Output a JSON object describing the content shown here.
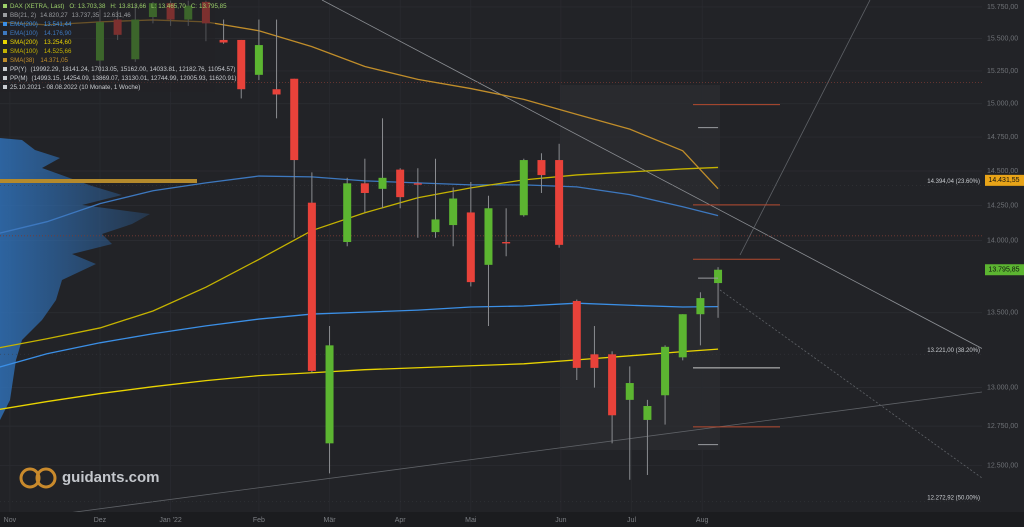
{
  "chart_data": {
    "type": "candlestick",
    "title": "DAX (XETRA, Last)",
    "ohlc_keys": [
      "O:",
      "H:",
      "L:",
      "C:"
    ],
    "ohlc_labels": [
      "13.703,38",
      "13.813,66",
      "13.465,70",
      "13.795,85"
    ],
    "date_range": "25.10.2021 - 08.08.2022  (10 Monate, 1 Woche)",
    "watermark": "guidants.com",
    "log_scale": true,
    "grid": true,
    "up_color": "#5cb531",
    "down_color": "#e8423a",
    "ylim": [
      12210,
      15805
    ],
    "yticks": [
      {
        "value": 12500,
        "label": "12.500,00"
      },
      {
        "value": 12750,
        "label": "12.750,00"
      },
      {
        "value": 13000,
        "label": "13.000,00"
      },
      {
        "value": 13500,
        "label": "13.500,00"
      },
      {
        "value": 14000,
        "label": "14.000,00"
      },
      {
        "value": 14250,
        "label": "14.250,00"
      },
      {
        "value": 14500,
        "label": "14.500,00"
      },
      {
        "value": 14750,
        "label": "14.750,00"
      },
      {
        "value": 15000,
        "label": "15.000,00"
      },
      {
        "value": 15250,
        "label": "15.250,00"
      },
      {
        "value": 15500,
        "label": "15.500,00"
      },
      {
        "value": 15750,
        "label": "15.750,00"
      }
    ],
    "xticks": [
      {
        "value": 0.9,
        "label": "Nov"
      },
      {
        "value": 6.0,
        "label": "Dez"
      },
      {
        "value": 10.0,
        "label": "Jan '22"
      },
      {
        "value": 15.0,
        "label": "Feb"
      },
      {
        "value": 19.0,
        "label": "Mär"
      },
      {
        "value": 23.0,
        "label": "Apr"
      },
      {
        "value": 27.0,
        "label": "Mai"
      },
      {
        "value": 32.1,
        "label": "Jun"
      },
      {
        "value": 36.1,
        "label": "Jul"
      },
      {
        "value": 40.1,
        "label": "Aug"
      }
    ],
    "categories": [
      null,
      null,
      null,
      null,
      null,
      null,
      null,
      null,
      null,
      null,
      null,
      null,
      null,
      null,
      null,
      null,
      null,
      null,
      null,
      null,
      null,
      null,
      null,
      null,
      null,
      null,
      null,
      null,
      null,
      null,
      null,
      null,
      null,
      null,
      null,
      null,
      null,
      null,
      null,
      null,
      null,
      null
    ],
    "open": [
      null,
      null,
      null,
      null,
      null,
      null,
      15330,
      15650,
      15340,
      15670,
      15780,
      15650,
      15790,
      15490,
      15490,
      15220,
      15110,
      15190,
      14270,
      12640,
      13990,
      14410,
      14370,
      14510,
      14410,
      14060,
      14110,
      14200,
      13830,
      13990,
      14180,
      14580,
      14580,
      13580,
      13220,
      13220,
      12920,
      12790,
      12950,
      13200,
      13490,
      13703.38
    ],
    "high": [
      null,
      null,
      null,
      null,
      null,
      null,
      15730,
      15720,
      15770,
      15790,
      15800,
      15800,
      15800,
      15650,
      15490,
      15650,
      15650,
      15190,
      14490,
      13410,
      14450,
      14590,
      14890,
      14520,
      14520,
      14590,
      14380,
      14420,
      14320,
      14230,
      14590,
      14630,
      14700,
      13590,
      13410,
      13240,
      13140,
      12920,
      13280,
      13490,
      13640,
      13813.66
    ],
    "low": [
      null,
      null,
      null,
      null,
      null,
      null,
      15230,
      15490,
      15320,
      15620,
      15600,
      15600,
      15480,
      15460,
      15040,
      15180,
      14890,
      14020,
      13100,
      12450,
      13960,
      14200,
      14230,
      14230,
      14020,
      14020,
      13960,
      13680,
      13410,
      13890,
      14170,
      14340,
      13950,
      13050,
      13000,
      12640,
      12410,
      12440,
      12760,
      13180,
      13280,
      13465.7
    ],
    "close": [
      null,
      null,
      null,
      null,
      null,
      null,
      15630,
      15530,
      15650,
      15780,
      15650,
      15760,
      15620,
      15470,
      15110,
      15450,
      15070,
      14580,
      13110,
      13280,
      14410,
      14340,
      14450,
      14310,
      14400,
      14150,
      14300,
      13710,
      14230,
      13980,
      14580,
      14470,
      13970,
      13130,
      13130,
      12820,
      13030,
      12880,
      13270,
      13490,
      13600,
      13795.85
    ],
    "bb": {
      "name": "BB(21, 2)",
      "color": "#9a9ca0",
      "values": [
        {
          "value": 14820.27,
          "label": "14.820,27"
        },
        {
          "value": 13737.35,
          "label": "13.737,35"
        },
        {
          "value": 12631.46,
          "label": "12.631,46"
        }
      ]
    },
    "series": [
      {
        "name": "EMA(200)",
        "color": "#3b8fe6",
        "last_label": "13.541,44",
        "x": [
          0,
          3,
          6,
          9,
          12,
          15,
          18,
          21,
          24,
          27,
          30,
          33,
          36,
          39,
          41
        ],
        "values": [
          13125,
          13224,
          13297,
          13358,
          13411,
          13457,
          13491,
          13504,
          13518,
          13539,
          13546,
          13565,
          13551,
          13539,
          13541.44
        ]
      },
      {
        "name": "EMA(100)",
        "color": "#3d78bf",
        "last_label": "14.176,90",
        "x": [
          0,
          3,
          6,
          9,
          12,
          15,
          18,
          21,
          24,
          27,
          30,
          33,
          36,
          39,
          41
        ],
        "values": [
          14043,
          14134,
          14263,
          14356,
          14413,
          14463,
          14457,
          14428,
          14413,
          14399,
          14399,
          14384,
          14328,
          14241,
          14176.9
        ]
      },
      {
        "name": "SMA(200)",
        "color": "#e9d400",
        "last_label": "13.254,60",
        "x": [
          0,
          3,
          6,
          9,
          12,
          15,
          18,
          21,
          24,
          27,
          30,
          33,
          36,
          39,
          41
        ],
        "values": [
          12852,
          12909,
          12961,
          13006,
          13046,
          13079,
          13098,
          13118,
          13131,
          13144,
          13157,
          13183,
          13210,
          13238,
          13254.6
        ]
      },
      {
        "name": "SMA(100)",
        "color": "#c5b300",
        "last_label": "14.525,66",
        "x": [
          0,
          3,
          6,
          9,
          12,
          15,
          18,
          21,
          24,
          27,
          30,
          33,
          36,
          39,
          41
        ],
        "values": [
          13257,
          13324,
          13397,
          13512,
          13675,
          13868,
          14071,
          14198,
          14306,
          14377,
          14435,
          14471,
          14493,
          14515,
          14525.66
        ]
      },
      {
        "name": "SMA(38)",
        "color": "#c08d2a",
        "last_label": "14.371,05",
        "x": [
          0,
          3,
          6,
          9,
          12,
          15,
          18,
          21,
          24,
          27,
          30,
          33,
          36,
          39,
          41
        ],
        "values": [
          15632,
          15608,
          15632,
          15647,
          15632,
          15562,
          15438,
          15284,
          15185,
          15115,
          15033,
          14920,
          14809,
          14648,
          14371.05
        ]
      }
    ],
    "pivots": [
      {
        "name": "PP(Y)",
        "style": "full",
        "color": "#7a3b33",
        "label": "(19992.29, 18141.24, 17013.05, 15162.00, 14033.81, 12182.76, 11054.57)",
        "values": [
          19992.29,
          18141.24,
          17013.05,
          15162.0,
          14033.81,
          12182.76,
          11054.57
        ]
      },
      {
        "name": "PP(M)",
        "style": "short",
        "color": "#b54a2f",
        "label": "(14993.15, 14254.09, 13869.07, 13130.01, 12744.99, 12005.93, 11620.91)",
        "values": [
          14993.15,
          14254.09,
          13869.07,
          13130.01,
          12744.99,
          12005.93,
          11620.91
        ]
      }
    ],
    "fib_levels": [
      {
        "value": 14394.04,
        "label": "14.394,04 (23.60%)"
      },
      {
        "value": 13221.0,
        "label": "13.221,00 (38.20%)"
      },
      {
        "value": 12272.92,
        "label": "12.272,92 (50.00%)"
      }
    ],
    "price_markers": [
      {
        "value": 14431.55,
        "label": "14.431,55",
        "color": "#e8a418"
      },
      {
        "value": 13795.85,
        "label": "13.795,85",
        "color": "#5cb531"
      }
    ]
  }
}
